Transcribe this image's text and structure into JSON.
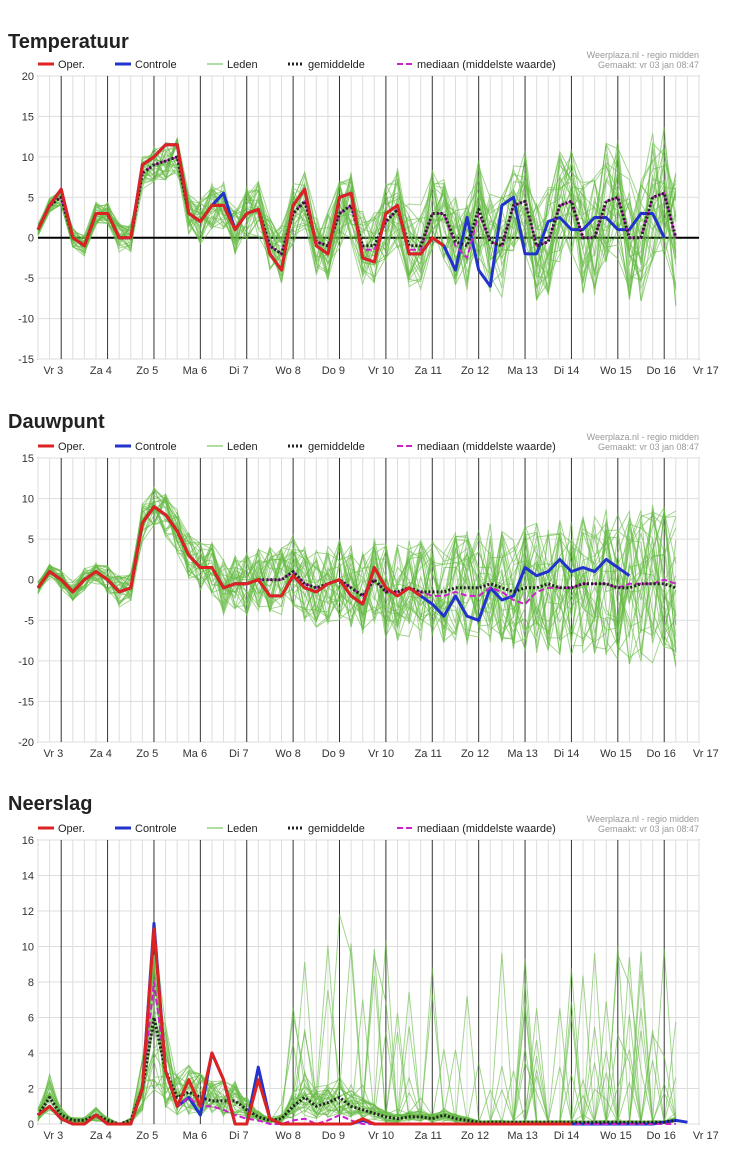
{
  "source_line1": "Weerplaza.nl - regio midden",
  "source_line2": "Gemaakt: vr 03 jan 08:47",
  "legend": {
    "oper": "Oper.",
    "controle": "Controle",
    "leden": "Leden",
    "gemiddelde": "gemiddelde",
    "mediaan": "mediaan (middelste waarde)"
  },
  "colors": {
    "oper": "#dd2222",
    "controle": "#2233cc",
    "leden": "#66bb44",
    "gemiddelde": "#222222",
    "mediaan": "#cc22cc"
  },
  "day_labels": [
    "Vr 3",
    "Za 4",
    "Zo 5",
    "Ma 6",
    "Di 7",
    "Wo 8",
    "Do 9",
    "Vr 10",
    "Za 11",
    "Zo 12",
    "Ma 13",
    "Di 14",
    "Wo 15",
    "Do 16",
    "Vr 17"
  ],
  "chart_data": [
    {
      "type": "line",
      "title": "Temperatuur",
      "ylim": [
        -15,
        20
      ],
      "yticks": [
        -15,
        -10,
        -5,
        0,
        5,
        10,
        15,
        20
      ],
      "zero_line": true,
      "step_hours": 6,
      "series": [
        {
          "name": "Oper.",
          "values": [
            1,
            4,
            6,
            0,
            -1,
            3,
            3,
            0,
            0,
            9,
            10,
            11.5,
            11.5,
            3,
            2,
            4,
            4,
            1,
            3,
            3.5,
            -2,
            -4,
            4,
            6,
            -1,
            -2,
            5,
            5.5,
            -2.5,
            -3,
            3,
            4,
            -2,
            -2,
            0,
            -1
          ]
        },
        {
          "name": "Controle",
          "values": [
            1,
            4,
            6,
            0,
            -1,
            3,
            3,
            0,
            0,
            9,
            10,
            11.5,
            11.5,
            3,
            2,
            4,
            5.5,
            1,
            3,
            3.5,
            -2,
            -4,
            4,
            6,
            -1,
            -2,
            5,
            5.5,
            -2.5,
            -3,
            3,
            4,
            -2,
            -2,
            0,
            -1,
            -4,
            2.5,
            -4,
            -6,
            4,
            5,
            -2,
            -2,
            2,
            2.5,
            1,
            1,
            2.5,
            2.5,
            1,
            1,
            3,
            3,
            0
          ]
        },
        {
          "name": "gemiddelde",
          "values": [
            1,
            4,
            5,
            0,
            -1,
            3,
            3,
            0,
            0,
            8,
            9,
            9.5,
            10,
            3,
            2,
            4,
            4,
            1,
            3,
            3.5,
            -1,
            -2,
            3,
            4.5,
            -0.5,
            -1,
            3,
            4,
            -1,
            -1,
            2,
            3.5,
            -1,
            -1,
            3,
            3,
            -0.5,
            -1,
            3.5,
            -0.5,
            -1,
            4,
            4.5,
            -1,
            -0.5,
            4,
            4.5,
            0,
            0,
            4.5,
            5,
            0,
            0,
            5,
            5.5,
            0
          ]
        },
        {
          "name": "mediaan (middelste waarde)",
          "values": [
            1,
            4,
            5,
            0,
            -1,
            3,
            3,
            0,
            0,
            8,
            9,
            9.5,
            10,
            3,
            2,
            4,
            4,
            1,
            3,
            3.5,
            -1,
            -2,
            3,
            4.5,
            -0.5,
            -1,
            3,
            4,
            -1.5,
            -1.5,
            2,
            3.5,
            -1.5,
            -1.5,
            3,
            3,
            -1,
            -2.5,
            3,
            -0.5,
            -1,
            4,
            4.5,
            -1,
            -0.5,
            4,
            4.5,
            0,
            0,
            4.5,
            5,
            0,
            0,
            5,
            5.5,
            0
          ]
        }
      ],
      "members_center": [
        1,
        4,
        5,
        0,
        -1,
        3,
        3,
        0,
        0,
        8,
        9,
        9.5,
        10,
        3,
        2,
        4,
        4,
        1,
        3,
        3.5,
        -1,
        -2,
        3,
        4.5,
        -0.5,
        -1,
        3,
        4,
        -1,
        -1,
        2,
        3.5,
        -1,
        -1,
        3,
        3,
        -0.5,
        -1,
        3.5,
        -0.5,
        -1,
        4,
        4.5,
        -1,
        -0.5,
        4,
        4.5,
        0,
        0,
        4.5,
        5,
        0,
        0,
        5,
        5.5,
        0
      ],
      "members_spread_growth": 0.14
    },
    {
      "type": "line",
      "title": "Dauwpunt",
      "ylim": [
        -20,
        15
      ],
      "yticks": [
        -20,
        -15,
        -10,
        -5,
        0,
        5,
        10,
        15
      ],
      "zero_line": false,
      "step_hours": 6,
      "series": [
        {
          "name": "Oper.",
          "values": [
            -1,
            1,
            0,
            -1.5,
            0,
            1,
            0,
            -1.5,
            -1,
            7,
            9,
            8,
            6,
            3,
            1.5,
            1.5,
            -1,
            -0.5,
            -0.5,
            0,
            -2,
            -2,
            0.5,
            -1,
            -1.5,
            -0.5,
            0,
            -2,
            -3,
            1.5,
            -1,
            -2,
            -1,
            -2
          ]
        },
        {
          "name": "Controle",
          "values": [
            -1,
            1,
            0,
            -1.5,
            0,
            1,
            0,
            -1.5,
            -1,
            7,
            9,
            8,
            6,
            3,
            1.5,
            1.5,
            -1,
            -0.5,
            -0.5,
            0,
            -2,
            -2,
            0.5,
            -1,
            -1.5,
            -0.5,
            0,
            -2,
            -3,
            1.5,
            -1,
            -2,
            -1,
            -2,
            -3,
            -4.5,
            -2,
            -4.5,
            -5,
            -1,
            -2.5,
            -2,
            1.5,
            0.5,
            1,
            2.5,
            1,
            1.5,
            1,
            2.5,
            1.5,
            0.5
          ]
        },
        {
          "name": "gemiddelde",
          "values": [
            -1,
            1,
            0,
            -1.5,
            0,
            1,
            0,
            -1.5,
            -1,
            7,
            9,
            8,
            6,
            3,
            1.5,
            1.5,
            -1,
            -0.5,
            -0.5,
            0,
            0,
            0,
            1,
            -0.5,
            -1,
            -0.5,
            0,
            -1,
            -2,
            0,
            -1.5,
            -1.5,
            -1,
            -1.5,
            -1.5,
            -1.5,
            -1,
            -1,
            -1,
            -0.5,
            -1,
            -1.5,
            -1,
            -1,
            -0.5,
            -1,
            -1,
            -0.5,
            -0.5,
            -0.5,
            -1,
            -1,
            -0.5,
            -0.5,
            -0.5,
            -1
          ]
        },
        {
          "name": "mediaan (middelste waarde)",
          "values": [
            -1,
            1,
            0,
            -1.5,
            0,
            1,
            0,
            -1.5,
            -1,
            7,
            9,
            8,
            6,
            3,
            1.5,
            1.5,
            -1,
            -0.5,
            -0.5,
            0,
            0,
            0,
            1,
            -0.5,
            -1,
            -0.5,
            0,
            -1,
            -2,
            0,
            -1.5,
            -1.5,
            -1,
            -1.5,
            -2,
            -2,
            -1.5,
            -2,
            -2,
            -1,
            -1.5,
            -2.5,
            -3,
            -1.5,
            -1,
            -1,
            -1,
            -0.5,
            -0.5,
            -0.5,
            -1,
            -0.5,
            -0.5,
            -0.5,
            0,
            -0.5
          ]
        }
      ],
      "members_center": [
        -1,
        1,
        0,
        -1.5,
        0,
        1,
        0,
        -1.5,
        -1,
        7,
        9,
        8,
        6,
        3,
        1.5,
        1.5,
        -1,
        -0.5,
        -0.5,
        0,
        0,
        0,
        1,
        -0.5,
        -1,
        -0.5,
        0,
        -1,
        -2,
        0,
        -1.5,
        -1.5,
        -1,
        -1.5,
        -1.5,
        -1.5,
        -1,
        -1,
        -1,
        -0.5,
        -1,
        -1.5,
        -1,
        -1,
        -0.5,
        -1,
        -1,
        -0.5,
        -0.5,
        -0.5,
        -1,
        -1,
        -0.5,
        -0.5,
        -0.5,
        -1
      ],
      "members_spread_growth": 0.17
    },
    {
      "type": "line",
      "title": "Neerslag",
      "ylim": [
        0,
        16
      ],
      "yticks": [
        0,
        2,
        4,
        6,
        8,
        10,
        12,
        14,
        16
      ],
      "zero_line": false,
      "step_hours": 6,
      "series": [
        {
          "name": "Oper.",
          "values": [
            0.5,
            1,
            0.3,
            0,
            0,
            0.5,
            0,
            0,
            0,
            2,
            11,
            3,
            1,
            2.5,
            1,
            4,
            2.5,
            0,
            0,
            2.5,
            0.3,
            0,
            0,
            0,
            0,
            0,
            0,
            0,
            0.3,
            0,
            0,
            0,
            0,
            0,
            0,
            0,
            0,
            0,
            0,
            0,
            0,
            0,
            0,
            0,
            0,
            0,
            0
          ]
        },
        {
          "name": "Controle",
          "values": [
            0.5,
            1,
            0.3,
            0,
            0,
            0.5,
            0,
            0,
            0,
            2,
            11.3,
            3,
            1,
            1.5,
            0.5,
            4,
            2.5,
            0,
            0,
            3.2,
            0.3,
            0,
            0,
            0,
            0,
            0,
            0,
            0,
            0.2,
            0,
            0,
            0,
            0,
            0,
            0,
            0,
            0,
            0,
            0,
            0,
            0,
            0,
            0,
            0,
            0,
            0,
            0,
            0,
            0,
            0,
            0,
            0,
            0,
            0,
            0.1,
            0.2,
            0.1
          ]
        },
        {
          "name": "gemiddelde",
          "values": [
            0.5,
            1.5,
            0.5,
            0.2,
            0.2,
            0.5,
            0.2,
            0,
            0.2,
            2,
            6,
            3,
            1.5,
            1.8,
            1.5,
            1.3,
            1.3,
            1.3,
            0.8,
            0.4,
            0.2,
            0.3,
            1,
            1.5,
            1,
            1.2,
            1.5,
            1,
            0.8,
            0.6,
            0.4,
            0.3,
            0.4,
            0.4,
            0.3,
            0.5,
            0.3,
            0.2,
            0.1,
            0.1,
            0.1,
            0.1,
            0.1,
            0.1,
            0.1,
            0.1,
            0.1,
            0.1,
            0.1,
            0.1,
            0.1,
            0.1,
            0.1,
            0.1,
            0.1,
            0.2
          ]
        },
        {
          "name": "mediaan (middelste waarde)",
          "values": [
            0.5,
            1,
            0.3,
            0,
            0,
            0.5,
            0,
            0,
            0,
            2,
            8,
            3,
            1,
            1.5,
            1,
            1,
            0.8,
            0.5,
            0.3,
            0.2,
            0,
            0,
            0.2,
            0.3,
            0,
            0.2,
            0.5,
            0.2,
            0,
            0,
            0,
            0,
            0,
            0,
            0,
            0,
            0,
            0,
            0,
            0,
            0,
            0,
            0,
            0,
            0,
            0,
            0,
            0,
            0,
            0,
            0,
            0,
            0,
            0,
            0,
            0
          ]
        }
      ],
      "members_center": [
        0.5,
        1.5,
        0.5,
        0.2,
        0.2,
        0.5,
        0.2,
        0,
        0.2,
        2,
        6,
        3,
        1.5,
        1.8,
        1.5,
        1.3,
        1.3,
        1.3,
        0.8,
        0.4,
        0.2,
        0.3,
        1,
        1.5,
        1,
        1.2,
        1.5,
        1,
        0.8,
        0.6,
        0.4,
        0.3,
        0.4,
        0.4,
        0.3,
        0.5,
        0.3,
        0.2,
        0.1,
        0.1,
        0.1,
        0.1,
        0.1,
        0.1,
        0.1,
        0.1,
        0.1,
        0.1,
        0.1,
        0.1,
        0.1,
        0.1,
        0.1,
        0.1,
        0.1,
        0.2
      ],
      "members_spread_growth": 0.0
    }
  ]
}
